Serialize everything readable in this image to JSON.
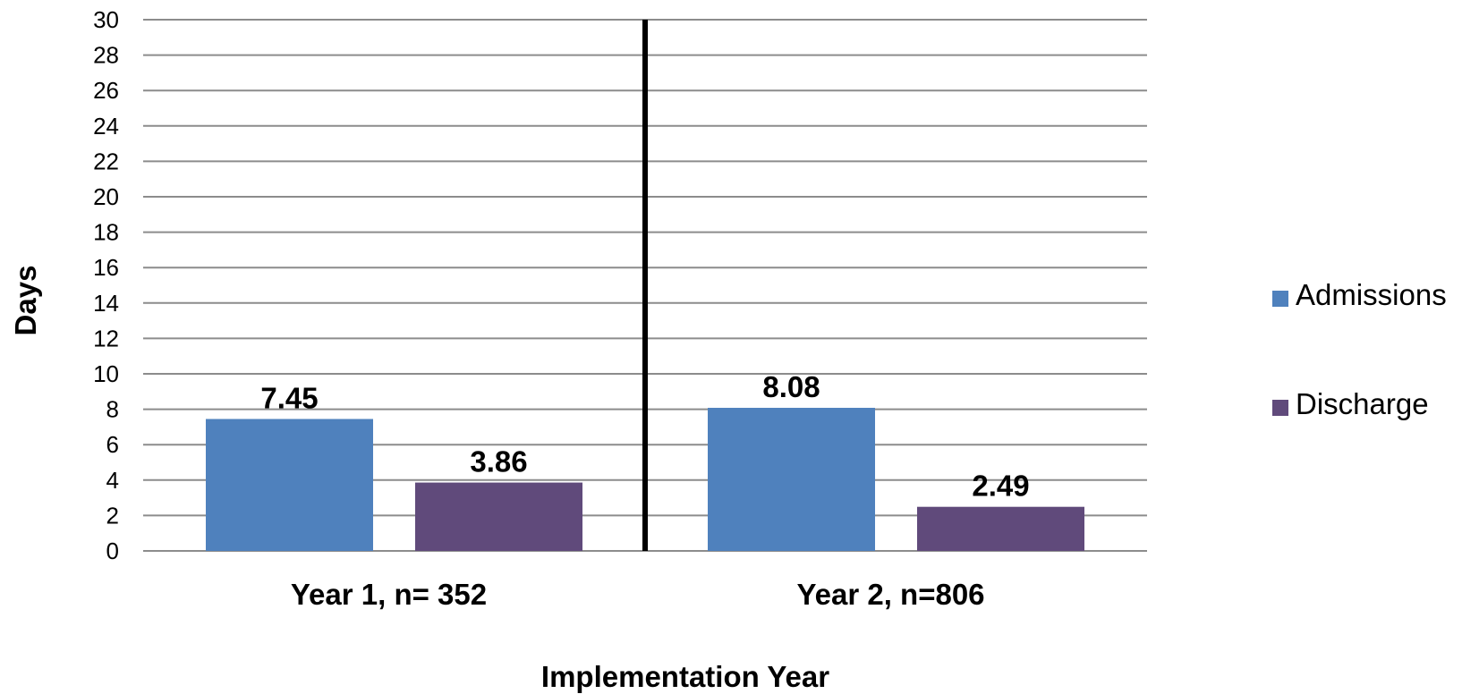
{
  "chart_data": {
    "type": "bar",
    "title": "",
    "xlabel": "Implementation Year",
    "ylabel": "Days",
    "categories": [
      "Year 1, n= 352",
      "Year 2, n=806"
    ],
    "series": [
      {
        "name": "Admissions",
        "values": [
          7.45,
          8.08
        ],
        "color": "#4f81bd"
      },
      {
        "name": "Discharge",
        "values": [
          3.86,
          2.49
        ],
        "color": "#604a7b"
      }
    ],
    "data_labels": [
      [
        "7.45",
        "8.08"
      ],
      [
        "3.86",
        "2.49"
      ]
    ],
    "ylim": [
      0,
      30
    ],
    "y_ticks": [
      0,
      2,
      4,
      6,
      8,
      10,
      12,
      14,
      16,
      18,
      20,
      22,
      24,
      26,
      28,
      30
    ],
    "grid": true,
    "category_divider": true,
    "legend_position": "right"
  }
}
